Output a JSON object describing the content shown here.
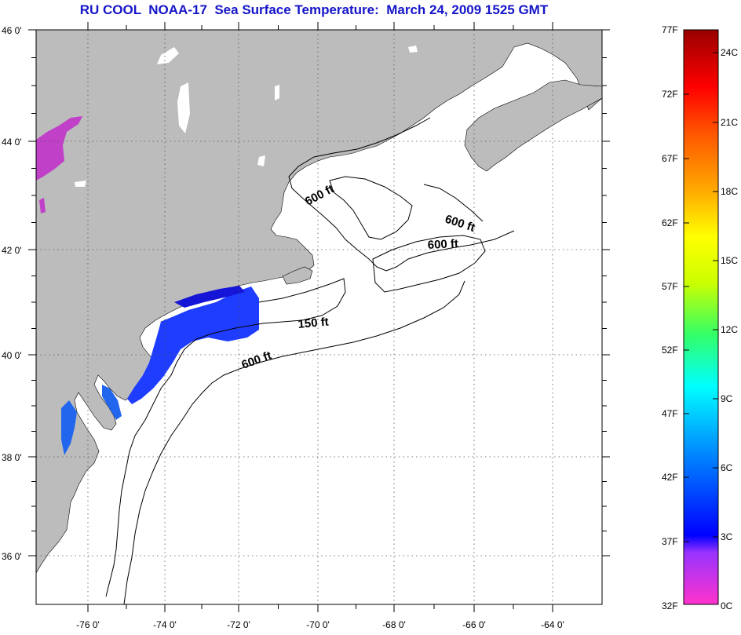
{
  "title": "RU COOL  NOAA-17  Sea Surface Temperature:  March 24, 2009 1525 GMT",
  "map": {
    "lat_labels": [
      "46 0'",
      "44 0'",
      "42 0'",
      "40 0'",
      "38 0'",
      "36 0'"
    ],
    "lon_labels": [
      "-76 0'",
      "-74 0'",
      "-72 0'",
      "-70 0'",
      "-68 0'",
      "-66 0'",
      "-64 0'"
    ],
    "contour_labels": [
      "600 ft",
      "600 ft",
      "600 ft",
      "150 ft",
      "600 ft"
    ],
    "colors": {
      "land": "#bcbcbc",
      "water_no_data": "#ffffff",
      "cold_sst": "#2244ff",
      "very_cold_sst": "#d040d0"
    }
  },
  "colorbar": {
    "f_labels": [
      "77F",
      "72F",
      "67F",
      "62F",
      "57F",
      "52F",
      "47F",
      "42F",
      "37F",
      "32F"
    ],
    "c_labels": [
      "24C",
      "21C",
      "18C",
      "15C",
      "12C",
      "9C",
      "6C",
      "3C",
      "0C"
    ],
    "gradient_colors": [
      "#ff33cc",
      "#9933ff",
      "#0000ff",
      "#0099ff",
      "#00ffff",
      "#33ff66",
      "#ccff00",
      "#ffff00",
      "#ffaa00",
      "#ff5500",
      "#ff0000",
      "#990000"
    ]
  }
}
